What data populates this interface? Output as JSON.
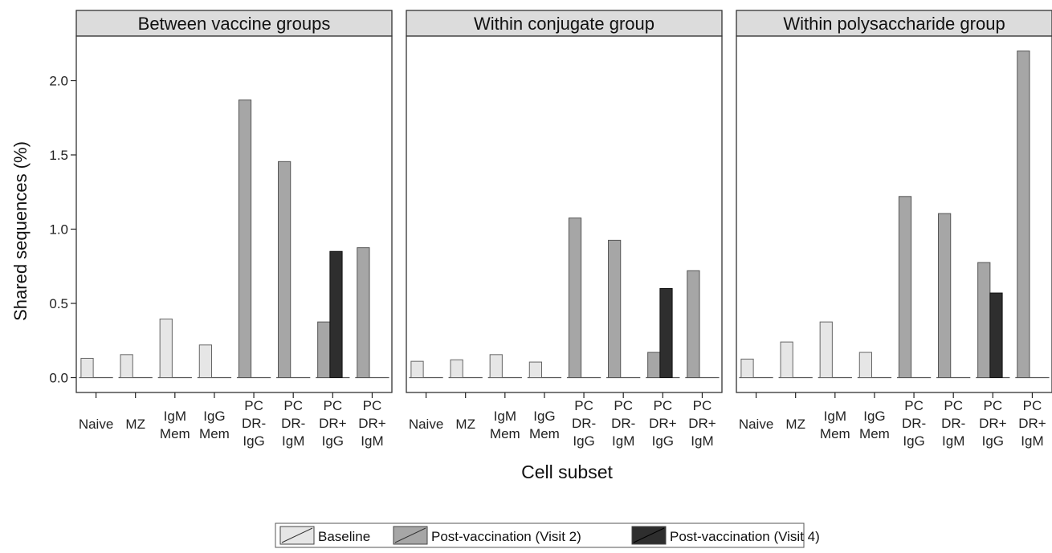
{
  "chart_data": {
    "type": "bar",
    "ylabel": "Shared sequences (%)",
    "xlabel": "Cell subset",
    "ylim": [
      -0.1,
      2.3
    ],
    "yticks": [
      "0.0",
      "0.5",
      "1.0",
      "1.5",
      "2.0"
    ],
    "ytick_values": [
      0,
      0.5,
      1.0,
      1.5,
      2.0
    ],
    "categories": [
      "Naive",
      "MZ",
      "IgM Mem",
      "IgG Mem",
      "PC DR- IgG",
      "PC DR- IgM",
      "PC DR+ IgG",
      "PC DR+ IgM"
    ],
    "category_lines": [
      [
        "Naive"
      ],
      [
        "MZ"
      ],
      [
        "IgM",
        "Mem"
      ],
      [
        "IgG",
        "Mem"
      ],
      [
        "PC",
        "DR-",
        "IgG"
      ],
      [
        "PC",
        "DR-",
        "IgM"
      ],
      [
        "PC",
        "DR+",
        "IgG"
      ],
      [
        "PC",
        "DR+",
        "IgM"
      ]
    ],
    "legend": {
      "position": "bottom",
      "entries": [
        {
          "label": "Baseline",
          "color": "#e6e6e6"
        },
        {
          "label": "Post-vaccination (Visit 2)",
          "color": "#a6a6a6"
        },
        {
          "label": "Post-vaccination (Visit 4)",
          "color": "#2e2e2e"
        }
      ]
    },
    "panels": [
      {
        "title": "Between vaccine groups",
        "series": [
          {
            "name": "Baseline",
            "values": [
              0.13,
              0.155,
              0.395,
              0.22,
              0,
              0,
              0,
              0
            ]
          },
          {
            "name": "Post-vaccination (Visit 2)",
            "values": [
              0,
              0,
              0,
              0,
              1.87,
              1.455,
              0.375,
              0.875
            ]
          },
          {
            "name": "Post-vaccination (Visit 4)",
            "values": [
              0,
              0,
              0,
              0,
              0,
              0,
              0.85,
              0
            ]
          }
        ]
      },
      {
        "title": "Within conjugate group",
        "series": [
          {
            "name": "Baseline",
            "values": [
              0.11,
              0.12,
              0.155,
              0.105,
              0,
              0,
              0,
              0
            ]
          },
          {
            "name": "Post-vaccination (Visit 2)",
            "values": [
              0,
              0,
              0,
              0,
              1.075,
              0.925,
              0.17,
              0.72
            ]
          },
          {
            "name": "Post-vaccination (Visit 4)",
            "values": [
              0,
              0,
              0,
              0,
              0,
              0,
              0.6,
              0
            ]
          }
        ]
      },
      {
        "title": "Within polysaccharide group",
        "series": [
          {
            "name": "Baseline",
            "values": [
              0.125,
              0.24,
              0.375,
              0.17,
              0,
              0,
              0,
              0
            ]
          },
          {
            "name": "Post-vaccination (Visit 2)",
            "values": [
              0,
              0,
              0,
              0,
              1.22,
              1.105,
              0.775,
              2.2
            ]
          },
          {
            "name": "Post-vaccination (Visit 4)",
            "values": [
              0,
              0,
              0,
              0,
              0,
              0,
              0.57,
              0
            ]
          }
        ]
      }
    ]
  }
}
